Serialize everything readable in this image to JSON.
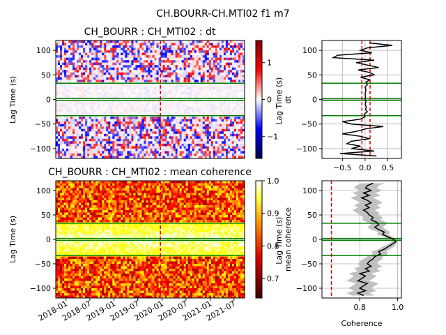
{
  "figure_title": "CH.BOURR-CH.MTI02 f1 m7",
  "colors": {
    "green_lines": "#008000",
    "red_dashed": "#e00000",
    "profile_line": "#000000",
    "band_fill": "#c0c0c0",
    "grid": "#b0b0b0"
  },
  "chart_data": [
    {
      "type": "heatmap",
      "title": "CH_BOURR : CH_MTI02 : dt",
      "ylabel": "Lag Time (s)",
      "yticks": [
        100,
        50,
        0,
        -50,
        -100
      ],
      "ylim": [
        -120,
        120
      ],
      "colormap": "seismic",
      "colorbar_ticks": [
        1,
        0,
        -1
      ],
      "colorbar_range": [
        -1.6,
        1.6
      ],
      "green_lines_lag": [
        33,
        2,
        -2,
        -33
      ],
      "red_dashed_vertical_date": "2019-12-20"
    },
    {
      "type": "line",
      "ylabel": "Lag Time (s)\ndt",
      "yticks": [
        100,
        50,
        0,
        -50,
        -100
      ],
      "xticks": [
        -0.5,
        0.0,
        0.5
      ],
      "xlim": [
        -0.95,
        0.8
      ],
      "ylim": [
        -120,
        120
      ],
      "grid": true,
      "red_dashed_x": [
        -0.07,
        0.11
      ],
      "green_lines_lag": [
        33,
        2,
        -2,
        -33
      ],
      "lag": [
        115,
        110,
        105,
        100,
        95,
        90,
        85,
        80,
        75,
        70,
        65,
        60,
        55,
        50,
        45,
        40,
        35,
        30,
        25,
        20,
        15,
        10,
        5,
        0,
        -5,
        -10,
        -15,
        -20,
        -25,
        -30,
        -35,
        -40,
        -45,
        -50,
        -55,
        -60,
        -65,
        -70,
        -75,
        -80,
        -85,
        -90,
        -95,
        -100,
        -105,
        -110,
        -115
      ],
      "dt": [
        0.1,
        0.6,
        0.05,
        -0.1,
        0.15,
        -0.6,
        -0.7,
        0.2,
        -0.2,
        0.05,
        0.3,
        -0.15,
        0.1,
        0.2,
        -0.1,
        0.1,
        0.02,
        0.05,
        0.0,
        0.02,
        0.01,
        0.0,
        0.01,
        0.0,
        0.02,
        0.0,
        0.03,
        0.01,
        0.05,
        -0.02,
        0.0,
        -0.1,
        -0.5,
        -0.3,
        0.4,
        0.0,
        -0.2,
        -0.5,
        -0.1,
        0.1,
        -0.3,
        -0.4,
        -0.1,
        -0.3,
        0.2,
        -0.55,
        0.25
      ]
    },
    {
      "type": "heatmap",
      "title": "CH_BOURR : CH_MTI02 : mean coherence",
      "ylabel": "Lag Time (s)",
      "yticks": [
        100,
        50,
        0,
        -50,
        -100
      ],
      "xticks": [
        "2018-01",
        "2018-07",
        "2019-01",
        "2019-07",
        "2020-01",
        "2020-07",
        "2021-01",
        "2021-07"
      ],
      "xlim": [
        "2017-10-15",
        "2021-09-20"
      ],
      "ylim": [
        -120,
        120
      ],
      "colormap": "hot",
      "colorbar_ticks": [
        1.0,
        0.9,
        0.8,
        0.7
      ],
      "colorbar_tick_labels": [
        "1.0",
        "0.9",
        "0.8",
        "0.7"
      ],
      "colorbar_range": [
        0.64,
        1.0
      ],
      "green_lines_lag": [
        33,
        2,
        -2,
        -33
      ],
      "red_dashed_vertical_date": "2019-12-20"
    },
    {
      "type": "line",
      "ylabel": "Lag Time (s)\nmean coherence",
      "xlabel": "Coherence",
      "yticks": [
        100,
        50,
        0,
        -50,
        -100
      ],
      "xticks": [
        0.8,
        1.0
      ],
      "xtick_labels": [
        "0.8",
        "1.0"
      ],
      "xlim": [
        0.6,
        1.02
      ],
      "ylim": [
        -120,
        120
      ],
      "grid": true,
      "red_dashed_x": [
        0.65
      ],
      "green_lines_lag": [
        33,
        2,
        -2,
        -33
      ],
      "lag": [
        115,
        110,
        105,
        100,
        95,
        90,
        85,
        80,
        75,
        70,
        65,
        60,
        55,
        50,
        45,
        40,
        35,
        30,
        25,
        20,
        15,
        10,
        5,
        0,
        -5,
        -10,
        -15,
        -20,
        -25,
        -30,
        -35,
        -40,
        -45,
        -50,
        -55,
        -60,
        -65,
        -70,
        -75,
        -80,
        -85,
        -90,
        -95,
        -100,
        -105,
        -110,
        -115
      ],
      "coherence": [
        0.87,
        0.84,
        0.83,
        0.86,
        0.82,
        0.85,
        0.81,
        0.84,
        0.86,
        0.83,
        0.85,
        0.82,
        0.84,
        0.85,
        0.87,
        0.86,
        0.89,
        0.9,
        0.88,
        0.9,
        0.93,
        0.92,
        0.95,
        0.98,
        0.99,
        0.97,
        0.95,
        0.93,
        0.9,
        0.91,
        0.88,
        0.87,
        0.85,
        0.84,
        0.86,
        0.83,
        0.85,
        0.8,
        0.83,
        0.81,
        0.79,
        0.84,
        0.82,
        0.8,
        0.83,
        0.79,
        0.82
      ],
      "spread": [
        0.06,
        0.06,
        0.06,
        0.06,
        0.06,
        0.06,
        0.06,
        0.06,
        0.06,
        0.06,
        0.06,
        0.06,
        0.06,
        0.05,
        0.05,
        0.05,
        0.05,
        0.04,
        0.04,
        0.04,
        0.03,
        0.03,
        0.02,
        0.02,
        0.02,
        0.02,
        0.03,
        0.03,
        0.04,
        0.04,
        0.04,
        0.05,
        0.05,
        0.05,
        0.06,
        0.06,
        0.06,
        0.06,
        0.06,
        0.06,
        0.06,
        0.06,
        0.06,
        0.06,
        0.06,
        0.06,
        0.06
      ]
    }
  ]
}
